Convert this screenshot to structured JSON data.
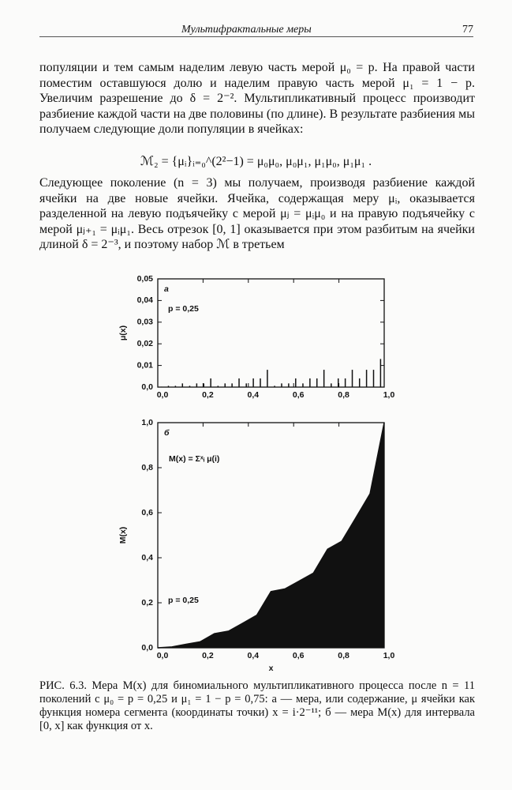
{
  "document": {
    "header": {
      "title": "Мультифрактальные меры",
      "page": "77"
    },
    "paragraphs": [
      "популяции и тем самым наделим левую часть мерой μ₀ = p. На правой части поместим оставшуюся долю и наделим правую часть мерой μ₁ = 1 − p. Увеличим разрешение до δ = 2⁻². Мультипликативный процесс производит разбиение каждой части на две половины (по длине). В результате разбиения мы получаем следующие доли популяции в ячейках:",
      "Следующее поколение (n = 3) мы получаем, производя разбиение каждой ячейки на две новые ячейки. Ячейка, содержащая меру μᵢ, оказывается разделенной на левую подъячейку с мерой μⱼ = μᵢμ₀ и на правую подъячейку с мерой μⱼ₊₁ = μᵢμ₁. Весь отрезок [0, 1] оказывается при этом разбитым на ячейки длиной δ = 2⁻³, и поэтому набор ℳ в третьем"
    ],
    "formula": "ℳ₂ = {μᵢ}ᵢ₌₀^(2²−1) = μ₀μ₀, μ₀μ₁, μ₁μ₀, μ₁μ₁ .",
    "caption": "РИС. 6.3. Мера M(x) для биномиального мультипликативного процесса после n = 11 поколений с μ₀ = p = 0,25 и μ₁ = 1 − p = 0,75: а — мера, или содержание, μ ячейки как функция номера сегмента (координаты точки) x = i·2⁻¹¹; б — мера M(x) для интервала [0, x] как функция от x."
  },
  "chart_data": [
    {
      "type": "spike",
      "panel_label": "а",
      "annotation": "p = 0,25",
      "ylabel": "μ(x)",
      "color": "#111111",
      "x": [
        0.016,
        0.047,
        0.078,
        0.109,
        0.141,
        0.172,
        0.203,
        0.234,
        0.266,
        0.297,
        0.328,
        0.359,
        0.391,
        0.422,
        0.453,
        0.484,
        0.516,
        0.547,
        0.578,
        0.609,
        0.641,
        0.672,
        0.703,
        0.734,
        0.766,
        0.797,
        0.828,
        0.859,
        0.891,
        0.922,
        0.953,
        0.984
      ],
      "values": [
        0.0002,
        0.0006,
        0.0006,
        0.0017,
        0.0006,
        0.0017,
        0.0017,
        0.004,
        0.0006,
        0.0017,
        0.0017,
        0.004,
        0.0017,
        0.004,
        0.004,
        0.008,
        0.0006,
        0.0017,
        0.0017,
        0.004,
        0.0017,
        0.004,
        0.004,
        0.008,
        0.0017,
        0.004,
        0.004,
        0.008,
        0.004,
        0.008,
        0.008,
        0.013
      ],
      "xlim": [
        0,
        1
      ],
      "ylim": [
        0,
        0.05
      ],
      "xticks": [
        {
          "value": 0,
          "label": "0,0"
        },
        {
          "value": 0.2,
          "label": "0,2"
        },
        {
          "value": 0.4,
          "label": "0,4"
        },
        {
          "value": 0.6,
          "label": "0,6"
        },
        {
          "value": 0.8,
          "label": "0,8"
        },
        {
          "value": 1,
          "label": "1,0"
        }
      ],
      "yticks": [
        {
          "value": 0,
          "label": "0,0"
        },
        {
          "value": 0.01,
          "label": "0,01"
        },
        {
          "value": 0.02,
          "label": "0,02"
        },
        {
          "value": 0.03,
          "label": "0,03"
        },
        {
          "value": 0.04,
          "label": "0,04"
        },
        {
          "value": 0.05,
          "label": "0,05"
        }
      ]
    },
    {
      "type": "area",
      "panel_label": "б",
      "formula": "M(x) = Σˣᵢ μ(i)",
      "annotation": "p = 0,25",
      "ylabel": "M(x)",
      "xlabel": "x",
      "color": "#111111",
      "x": [
        0,
        0.0625,
        0.125,
        0.1875,
        0.25,
        0.3125,
        0.375,
        0.4375,
        0.5,
        0.5625,
        0.625,
        0.6875,
        0.75,
        0.8125,
        0.875,
        0.9375,
        1
      ],
      "values": [
        0,
        0.004,
        0.016,
        0.027,
        0.063,
        0.074,
        0.109,
        0.145,
        0.25,
        0.262,
        0.297,
        0.332,
        0.438,
        0.473,
        0.578,
        0.684,
        1
      ],
      "xlim": [
        0,
        1
      ],
      "ylim": [
        0,
        1
      ],
      "xticks": [
        {
          "value": 0,
          "label": "0,0"
        },
        {
          "value": 0.2,
          "label": "0,2"
        },
        {
          "value": 0.4,
          "label": "0,4"
        },
        {
          "value": 0.6,
          "label": "0,6"
        },
        {
          "value": 0.8,
          "label": "0,8"
        },
        {
          "value": 1,
          "label": "1,0"
        }
      ],
      "yticks": [
        {
          "value": 0,
          "label": "0,0"
        },
        {
          "value": 0.2,
          "label": "0,2"
        },
        {
          "value": 0.4,
          "label": "0,4"
        },
        {
          "value": 0.6,
          "label": "0,6"
        },
        {
          "value": 0.8,
          "label": "0,8"
        },
        {
          "value": 1,
          "label": "1,0"
        }
      ]
    }
  ]
}
